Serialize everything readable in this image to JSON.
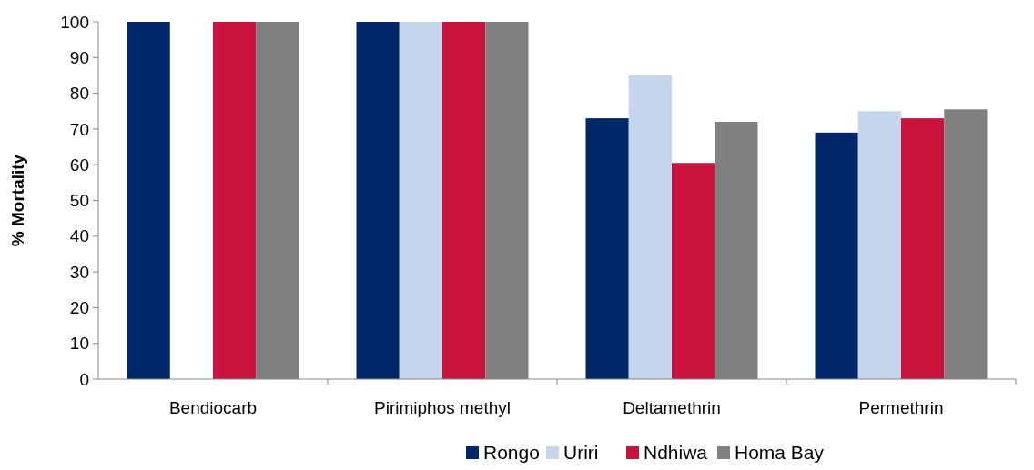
{
  "chart_data": {
    "type": "bar",
    "ylabel": "% Mortality",
    "categories": [
      "Bendiocarb",
      "Pirimiphos methyl",
      "Deltamethrin",
      "Permethrin"
    ],
    "series": [
      {
        "name": "Rongo",
        "color": "#002868",
        "values": [
          100,
          100,
          73,
          69
        ]
      },
      {
        "name": "Uriri",
        "color": "#c5d6ec",
        "values": [
          null,
          100,
          85,
          75
        ]
      },
      {
        "name": "Ndhiwa",
        "color": "#c8143c",
        "values": [
          100,
          100,
          60.5,
          73
        ]
      },
      {
        "name": "Homa Bay",
        "color": "#808080",
        "values": [
          100,
          100,
          72,
          75.5
        ]
      }
    ],
    "ylim": [
      0,
      100
    ],
    "yticks": [
      0,
      10,
      20,
      30,
      40,
      50,
      60,
      70,
      80,
      90,
      100
    ],
    "grid": false,
    "legend": "bottom"
  }
}
